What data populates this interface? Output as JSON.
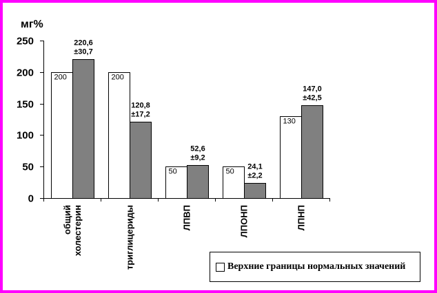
{
  "chart_data": {
    "type": "bar",
    "ylabel": "мг%",
    "ylim": [
      0,
      250
    ],
    "yticks": [
      "0",
      "50",
      "100",
      "150",
      "200",
      "250"
    ],
    "categories": [
      [
        "общий",
        "холестерин"
      ],
      [
        "триглицериды"
      ],
      [
        "ЛПВП"
      ],
      [
        "ЛПОНП"
      ],
      [
        "ЛПНП"
      ]
    ],
    "series": [
      {
        "name": "Верхние границы нормальных значений",
        "color": "#ffffff",
        "values": [
          200,
          200,
          50,
          50,
          130
        ],
        "labels": [
          "200",
          "200",
          "50",
          "50",
          "130"
        ]
      },
      {
        "color": "#808080",
        "values": [
          220.6,
          120.8,
          52.6,
          24.1,
          147.0
        ],
        "labels": [
          [
            "220,6",
            "±30,7"
          ],
          [
            "120,8",
            "±17,2"
          ],
          [
            "52,6",
            "±9,2"
          ],
          [
            "24,1",
            "±2,2"
          ],
          [
            "147,0",
            "±42,5"
          ]
        ]
      }
    ],
    "legend": {
      "placement": "bottom-right",
      "text": "Верхние границы нормальных значений"
    },
    "grid": false
  }
}
